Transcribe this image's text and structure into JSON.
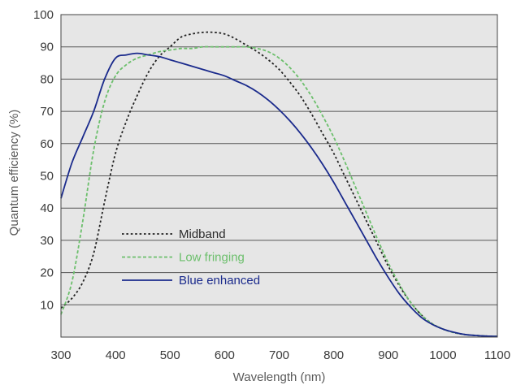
{
  "chart_data": {
    "type": "line",
    "xlabel": "Wavelength (nm)",
    "ylabel": "Quantum efficiency (%)",
    "xlim": [
      300,
      1100
    ],
    "ylim": [
      0,
      100
    ],
    "xticks": [
      300,
      400,
      500,
      600,
      700,
      800,
      900,
      1000,
      1100
    ],
    "yticks": [
      10,
      20,
      30,
      40,
      50,
      60,
      70,
      80,
      90,
      100
    ],
    "grid": "horizontal",
    "background": "#e6e6e6",
    "legend": "lower-left",
    "series": [
      {
        "name": "Midband",
        "color": "#222222",
        "dash": "dotted",
        "x": [
          300,
          320,
          340,
          360,
          380,
          400,
          420,
          440,
          460,
          480,
          500,
          520,
          540,
          560,
          580,
          600,
          620,
          640,
          660,
          680,
          700,
          720,
          740,
          760,
          780,
          800,
          820,
          840,
          860,
          880,
          900,
          920,
          940,
          960,
          980,
          1000,
          1020,
          1040,
          1060,
          1080,
          1100
        ],
        "y": [
          9,
          12,
          17,
          26,
          42,
          57,
          67,
          75,
          82,
          87,
          90,
          93,
          94,
          94.5,
          94.5,
          94,
          92.5,
          90.5,
          88.5,
          86,
          83,
          79,
          74.5,
          69,
          63,
          57,
          50,
          43,
          36,
          29,
          22,
          16,
          11,
          7,
          4.2,
          2.5,
          1.4,
          0.8,
          0.5,
          0.3,
          0.2
        ]
      },
      {
        "name": "Low fringing",
        "color": "#6cbf6c",
        "dash": "dashed",
        "x": [
          300,
          320,
          340,
          360,
          380,
          400,
          420,
          440,
          460,
          480,
          500,
          520,
          540,
          560,
          580,
          600,
          620,
          640,
          660,
          680,
          700,
          720,
          740,
          760,
          780,
          800,
          820,
          840,
          860,
          880,
          900,
          920,
          940,
          960,
          980,
          1000,
          1020,
          1040,
          1060,
          1080,
          1100
        ],
        "y": [
          7,
          17,
          36,
          58,
          73,
          81,
          84.5,
          86.5,
          87.5,
          88.5,
          89,
          89.5,
          89.5,
          90,
          90,
          90,
          90,
          90,
          89.5,
          88.5,
          86.5,
          83.5,
          79.5,
          74.5,
          68.5,
          62,
          54.5,
          46.5,
          38.5,
          30.5,
          23,
          16.5,
          11,
          7,
          4.2,
          2.5,
          1.4,
          0.8,
          0.5,
          0.3,
          0.2
        ]
      },
      {
        "name": "Blue enhanced",
        "color": "#1a2a8c",
        "dash": "solid",
        "x": [
          300,
          320,
          340,
          360,
          380,
          400,
          420,
          440,
          460,
          480,
          500,
          520,
          540,
          560,
          580,
          600,
          620,
          640,
          660,
          680,
          700,
          720,
          740,
          760,
          780,
          800,
          820,
          840,
          860,
          880,
          900,
          920,
          940,
          960,
          980,
          1000,
          1020,
          1040,
          1060,
          1080,
          1100
        ],
        "y": [
          43,
          54,
          62,
          70,
          80,
          86.5,
          87.5,
          88,
          87.5,
          87,
          86,
          85,
          84,
          83,
          82,
          81,
          79.5,
          78,
          76,
          73.5,
          70.5,
          67,
          63,
          58.5,
          53.5,
          48,
          42,
          36,
          30,
          24,
          18.5,
          13.5,
          9.5,
          6.2,
          4,
          2.5,
          1.5,
          0.8,
          0.5,
          0.3,
          0.2
        ]
      }
    ]
  }
}
